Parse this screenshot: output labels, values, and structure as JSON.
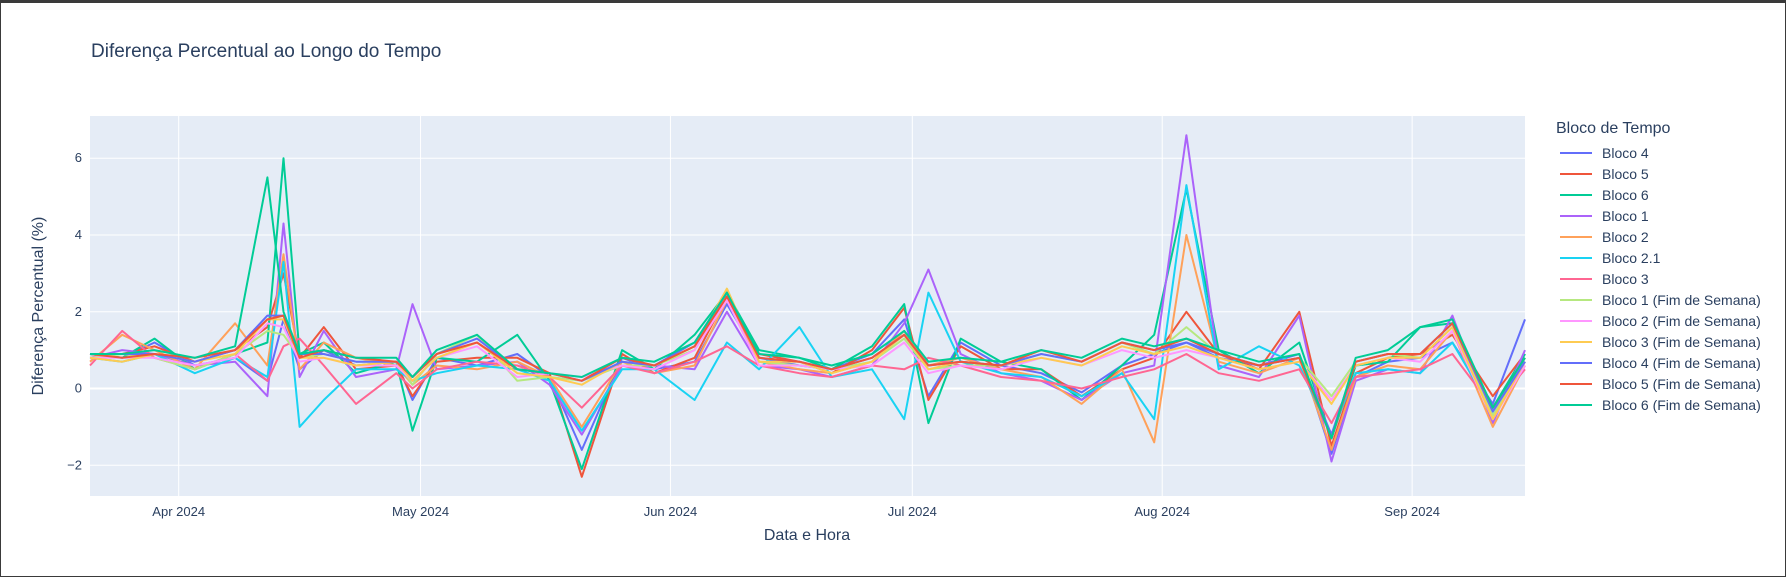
{
  "chart_data": {
    "type": "line",
    "title": "Diferença Percentual ao Longo do Tempo",
    "xlabel": "Data e Hora",
    "ylabel": "Diferença Percentual (%)",
    "legend_title": "Bloco de Tempo",
    "legend_position": "right",
    "grid": true,
    "x_ticks": [
      "Apr 2024",
      "May 2024",
      "Jun 2024",
      "Jul 2024",
      "Aug 2024",
      "Sep 2024"
    ],
    "x_tick_dates": [
      "2024-04-01",
      "2024-05-01",
      "2024-06-01",
      "2024-07-01",
      "2024-08-01",
      "2024-09-01"
    ],
    "xlim": [
      "2024-03-21",
      "2024-09-15"
    ],
    "y_ticks": [
      -2,
      0,
      2,
      4,
      6
    ],
    "ylim": [
      -2.8,
      7.1
    ],
    "x": [
      "2024-03-21",
      "2024-03-25",
      "2024-03-29",
      "2024-04-03",
      "2024-04-08",
      "2024-04-12",
      "2024-04-14",
      "2024-04-16",
      "2024-04-19",
      "2024-04-23",
      "2024-04-28",
      "2024-04-30",
      "2024-05-03",
      "2024-05-08",
      "2024-05-13",
      "2024-05-17",
      "2024-05-21",
      "2024-05-26",
      "2024-05-30",
      "2024-06-04",
      "2024-06-08",
      "2024-06-12",
      "2024-06-17",
      "2024-06-21",
      "2024-06-26",
      "2024-06-30",
      "2024-07-03",
      "2024-07-07",
      "2024-07-12",
      "2024-07-17",
      "2024-07-22",
      "2024-07-27",
      "2024-07-31",
      "2024-08-04",
      "2024-08-08",
      "2024-08-13",
      "2024-08-18",
      "2024-08-22",
      "2024-08-25",
      "2024-08-29",
      "2024-09-02",
      "2024-09-06",
      "2024-09-11",
      "2024-09-15"
    ],
    "series": [
      {
        "name": "Bloco 4",
        "color": "#636efa",
        "values": [
          0.9,
          0.8,
          1.2,
          0.6,
          0.8,
          0.2,
          1.8,
          0.5,
          1.0,
          0.6,
          0.7,
          -0.3,
          0.8,
          0.6,
          0.9,
          0.3,
          -1.6,
          0.8,
          0.5,
          0.7,
          2.2,
          0.8,
          0.6,
          0.5,
          0.9,
          1.8,
          -0.2,
          1.2,
          0.6,
          0.4,
          -0.1,
          0.6,
          0.9,
          1.2,
          0.8,
          0.6,
          0.9,
          -1.7,
          0.3,
          0.7,
          0.8,
          1.2,
          -0.4,
          1.8
        ]
      },
      {
        "name": "Bloco 5",
        "color": "#ef553b",
        "values": [
          0.9,
          0.9,
          1.1,
          0.7,
          1.0,
          1.6,
          3.0,
          0.8,
          1.6,
          0.5,
          0.6,
          -0.2,
          0.7,
          0.8,
          0.8,
          0.4,
          -2.3,
          0.9,
          0.4,
          0.8,
          2.4,
          0.9,
          0.7,
          0.4,
          1.0,
          2.1,
          -0.3,
          1.1,
          0.5,
          0.5,
          -0.2,
          0.5,
          0.8,
          2.0,
          0.9,
          0.5,
          2.0,
          -1.5,
          0.4,
          0.8,
          0.9,
          1.4,
          -0.2,
          0.9
        ]
      },
      {
        "name": "Bloco 6",
        "color": "#00cc96",
        "values": [
          0.9,
          0.8,
          1.3,
          0.5,
          0.9,
          1.2,
          6.0,
          0.9,
          1.2,
          0.4,
          0.7,
          -1.1,
          0.8,
          0.7,
          1.4,
          0.2,
          -2.1,
          1.0,
          0.5,
          1.4,
          2.5,
          1.0,
          0.8,
          0.5,
          1.1,
          2.2,
          -0.9,
          1.3,
          0.7,
          0.5,
          -0.3,
          0.6,
          1.4,
          5.2,
          1.0,
          0.4,
          1.2,
          -1.3,
          0.6,
          0.7,
          1.6,
          1.7,
          -0.5,
          0.9
        ]
      },
      {
        "name": "Bloco 1",
        "color": "#ab63fa",
        "values": [
          0.8,
          1.0,
          0.9,
          0.6,
          0.7,
          -0.2,
          4.3,
          0.3,
          1.5,
          0.3,
          0.5,
          2.2,
          0.5,
          0.6,
          0.7,
          0.1,
          -1.2,
          0.6,
          0.6,
          0.5,
          2.0,
          0.6,
          0.5,
          0.3,
          0.6,
          1.7,
          3.1,
          0.9,
          0.4,
          0.2,
          -0.3,
          0.4,
          0.6,
          6.6,
          0.6,
          0.3,
          1.9,
          -1.9,
          0.2,
          0.5,
          0.4,
          1.9,
          -0.9,
          1.0
        ]
      },
      {
        "name": "Bloco 2",
        "color": "#ffa15a",
        "values": [
          0.7,
          1.4,
          1.0,
          0.5,
          1.7,
          0.6,
          3.5,
          0.5,
          1.2,
          0.8,
          0.6,
          0.1,
          0.6,
          0.5,
          0.7,
          0.3,
          -1.0,
          0.7,
          0.4,
          0.6,
          2.3,
          0.7,
          0.5,
          0.4,
          0.7,
          1.5,
          0.6,
          0.8,
          0.5,
          0.3,
          -0.4,
          0.5,
          -1.4,
          4.0,
          0.7,
          0.4,
          0.8,
          -1.6,
          0.3,
          0.6,
          0.5,
          1.5,
          -1.0,
          0.6
        ]
      },
      {
        "name": "Bloco 2.1",
        "color": "#19d3f3",
        "values": [
          0.8,
          0.7,
          0.9,
          0.4,
          0.8,
          0.3,
          3.3,
          -1.0,
          -0.3,
          0.5,
          0.5,
          0.2,
          0.4,
          0.6,
          0.5,
          0.2,
          -1.1,
          0.5,
          0.5,
          -0.3,
          1.2,
          0.5,
          1.6,
          0.3,
          0.5,
          -0.8,
          2.5,
          0.7,
          0.4,
          0.3,
          -0.2,
          0.4,
          -0.8,
          5.3,
          0.5,
          1.1,
          0.6,
          -1.2,
          0.4,
          0.5,
          0.4,
          1.2,
          -0.6,
          0.7
        ]
      },
      {
        "name": "Bloco 3",
        "color": "#ff6692",
        "values": [
          0.6,
          1.5,
          0.8,
          0.5,
          0.9,
          0.2,
          1.1,
          1.3,
          0.6,
          -0.4,
          0.4,
          0.0,
          0.5,
          0.7,
          0.6,
          0.3,
          -0.5,
          0.6,
          0.4,
          0.7,
          1.1,
          0.6,
          0.4,
          0.3,
          0.6,
          0.5,
          0.8,
          0.6,
          0.3,
          0.2,
          0.0,
          0.3,
          0.5,
          0.9,
          0.4,
          0.2,
          0.5,
          -0.9,
          0.3,
          0.4,
          0.5,
          0.9,
          -0.5,
          0.5
        ]
      },
      {
        "name": "Bloco 1 (Fim de Semana)",
        "color": "#b6e880",
        "values": [
          0.8,
          0.9,
          0.8,
          0.5,
          0.9,
          1.5,
          1.4,
          0.8,
          0.9,
          0.7,
          0.7,
          0.1,
          0.9,
          1.4,
          0.2,
          0.3,
          0.2,
          0.6,
          0.6,
          1.0,
          2.6,
          0.7,
          0.6,
          0.5,
          0.7,
          1.3,
          0.5,
          0.6,
          0.6,
          0.9,
          0.7,
          1.2,
          0.9,
          1.6,
          0.9,
          0.6,
          0.8,
          -0.2,
          0.7,
          0.9,
          0.8,
          1.6,
          -0.7,
          0.7
        ]
      },
      {
        "name": "Bloco 2 (Fim de Semana)",
        "color": "#ff97ff",
        "values": [
          0.8,
          0.8,
          0.8,
          0.6,
          0.8,
          1.7,
          1.6,
          0.7,
          0.8,
          0.6,
          0.6,
          0.2,
          0.8,
          1.1,
          0.3,
          0.4,
          0.3,
          0.6,
          0.5,
          1.0,
          2.3,
          0.6,
          0.6,
          0.5,
          0.6,
          1.2,
          0.4,
          0.6,
          0.5,
          0.8,
          0.6,
          1.0,
          0.8,
          1.0,
          0.8,
          0.5,
          0.7,
          -0.3,
          0.6,
          0.8,
          0.7,
          1.5,
          -0.8,
          0.6
        ]
      },
      {
        "name": "Bloco 3 (Fim de Semana)",
        "color": "#fecb52",
        "values": [
          0.8,
          0.7,
          0.9,
          0.7,
          0.9,
          1.8,
          1.8,
          0.8,
          0.8,
          0.6,
          0.7,
          0.2,
          0.8,
          1.2,
          0.4,
          0.3,
          0.1,
          0.7,
          0.6,
          1.1,
          2.6,
          0.7,
          0.7,
          0.4,
          0.7,
          1.4,
          0.5,
          0.7,
          0.6,
          0.8,
          0.6,
          1.1,
          0.9,
          1.1,
          0.8,
          0.5,
          0.7,
          -0.4,
          0.6,
          0.8,
          0.8,
          1.6,
          -0.8,
          0.7
        ]
      },
      {
        "name": "Bloco 4 (Fim de Semana)",
        "color": "#636efa",
        "values": [
          0.9,
          0.9,
          0.9,
          0.7,
          1.0,
          1.9,
          1.9,
          0.9,
          0.9,
          0.7,
          0.7,
          0.3,
          0.9,
          1.3,
          0.5,
          0.4,
          0.2,
          0.7,
          0.6,
          1.2,
          2.5,
          0.8,
          0.7,
          0.5,
          0.8,
          1.4,
          0.6,
          0.7,
          0.6,
          0.9,
          0.7,
          1.2,
          1.0,
          1.2,
          0.9,
          0.6,
          0.8,
          -1.2,
          0.7,
          0.9,
          0.9,
          1.7,
          -0.6,
          0.7
        ]
      },
      {
        "name": "Bloco 5 (Fim de Semana)",
        "color": "#ef553b",
        "values": [
          0.9,
          0.8,
          0.9,
          0.8,
          1.0,
          1.8,
          1.9,
          0.8,
          1.0,
          0.8,
          0.7,
          0.3,
          0.9,
          1.2,
          0.5,
          0.4,
          0.2,
          0.8,
          0.6,
          1.1,
          2.4,
          0.8,
          0.7,
          0.5,
          0.8,
          1.4,
          0.6,
          0.7,
          0.6,
          1.0,
          0.7,
          1.2,
          1.0,
          1.3,
          0.9,
          0.6,
          0.8,
          -1.3,
          0.7,
          0.9,
          0.9,
          1.7,
          -0.5,
          0.8
        ]
      },
      {
        "name": "Bloco 6 (Fim de Semana)",
        "color": "#00cc96",
        "values": [
          0.9,
          0.9,
          1.0,
          0.8,
          1.1,
          5.5,
          2.0,
          0.9,
          1.0,
          0.8,
          0.8,
          0.3,
          1.0,
          1.4,
          0.5,
          0.4,
          0.3,
          0.8,
          0.7,
          1.2,
          2.5,
          0.9,
          0.8,
          0.6,
          0.9,
          1.5,
          0.7,
          0.8,
          0.7,
          1.0,
          0.8,
          1.3,
          1.1,
          1.3,
          1.0,
          0.7,
          0.9,
          -1.3,
          0.8,
          1.0,
          1.6,
          1.8,
          -0.5,
          0.8
        ]
      }
    ]
  }
}
